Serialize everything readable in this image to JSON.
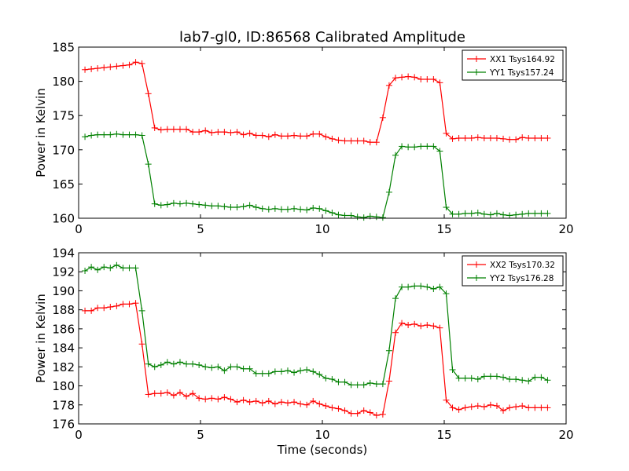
{
  "figure": {
    "title": "lab7-gl0, ID:86568 Calibrated Amplitude",
    "xlabel": "Time (seconds)"
  },
  "colors": {
    "red": "#ff0000",
    "green": "#008000"
  },
  "chart_data": [
    {
      "type": "line",
      "ylabel": "Power in Kelvin",
      "xlim": [
        0,
        20
      ],
      "ylim": [
        160,
        185
      ],
      "xticks": [
        0,
        5,
        10,
        15,
        20
      ],
      "yticks": [
        160,
        165,
        170,
        175,
        180,
        185
      ],
      "legend_position": "top-right",
      "x": [
        0.26,
        0.52,
        0.78,
        1.04,
        1.3,
        1.56,
        1.82,
        2.08,
        2.34,
        2.6,
        2.86,
        3.12,
        3.38,
        3.64,
        3.9,
        4.16,
        4.42,
        4.68,
        4.94,
        5.2,
        5.46,
        5.72,
        5.98,
        6.24,
        6.5,
        6.76,
        7.02,
        7.28,
        7.54,
        7.8,
        8.06,
        8.32,
        8.58,
        8.84,
        9.1,
        9.36,
        9.62,
        9.88,
        10.14,
        10.4,
        10.66,
        10.92,
        11.18,
        11.44,
        11.7,
        11.96,
        12.22,
        12.48,
        12.74,
        13.0,
        13.26,
        13.52,
        13.78,
        14.04,
        14.3,
        14.56,
        14.82,
        15.08,
        15.34,
        15.6,
        15.86,
        16.12,
        16.38,
        16.64,
        16.9,
        17.16,
        17.42,
        17.68,
        17.94,
        18.2,
        18.46,
        18.72,
        18.98,
        19.24
      ],
      "series": [
        {
          "name": "XX1 Tsys164.92",
          "color": "#ff0000",
          "values": [
            181.7,
            181.8,
            181.9,
            182.0,
            182.1,
            182.2,
            182.3,
            182.4,
            182.8,
            182.6,
            178.2,
            173.2,
            172.9,
            173.0,
            173.0,
            173.0,
            173.0,
            172.6,
            172.6,
            172.8,
            172.5,
            172.6,
            172.6,
            172.5,
            172.6,
            172.2,
            172.4,
            172.1,
            172.1,
            171.9,
            172.2,
            172.0,
            172.0,
            172.1,
            172.0,
            172.0,
            172.3,
            172.3,
            171.9,
            171.6,
            171.4,
            171.3,
            171.3,
            171.3,
            171.3,
            171.1,
            171.1,
            174.7,
            179.4,
            180.5,
            180.6,
            180.7,
            180.6,
            180.3,
            180.3,
            180.3,
            179.8,
            172.4,
            171.6,
            171.7,
            171.7,
            171.7,
            171.8,
            171.7,
            171.7,
            171.7,
            171.6,
            171.5,
            171.5,
            171.8,
            171.7,
            171.7,
            171.7,
            171.7
          ]
        },
        {
          "name": "YY1 Tsys157.24",
          "color": "#008000",
          "values": [
            171.9,
            172.1,
            172.2,
            172.2,
            172.2,
            172.3,
            172.2,
            172.2,
            172.2,
            172.1,
            167.9,
            162.1,
            161.9,
            162.0,
            162.2,
            162.1,
            162.2,
            162.1,
            162.0,
            161.9,
            161.8,
            161.8,
            161.7,
            161.6,
            161.6,
            161.7,
            161.9,
            161.6,
            161.4,
            161.3,
            161.4,
            161.3,
            161.3,
            161.4,
            161.3,
            161.2,
            161.5,
            161.4,
            161.1,
            160.8,
            160.5,
            160.4,
            160.4,
            160.2,
            160.1,
            160.3,
            160.2,
            160.1,
            163.8,
            169.2,
            170.5,
            170.4,
            170.4,
            170.5,
            170.5,
            170.5,
            169.8,
            161.6,
            160.6,
            160.6,
            160.7,
            160.7,
            160.8,
            160.6,
            160.5,
            160.7,
            160.5,
            160.4,
            160.5,
            160.6,
            160.7,
            160.7,
            160.7,
            160.7
          ]
        }
      ]
    },
    {
      "type": "line",
      "ylabel": "Power in Kelvin",
      "xlabel": "Time (seconds)",
      "xlim": [
        0,
        20
      ],
      "ylim": [
        176,
        194
      ],
      "xticks": [
        0,
        5,
        10,
        15,
        20
      ],
      "yticks": [
        176,
        178,
        180,
        182,
        184,
        186,
        188,
        190,
        192,
        194
      ],
      "legend_position": "top-right",
      "x": [
        0.26,
        0.52,
        0.78,
        1.04,
        1.3,
        1.56,
        1.82,
        2.08,
        2.34,
        2.6,
        2.86,
        3.12,
        3.38,
        3.64,
        3.9,
        4.16,
        4.42,
        4.68,
        4.94,
        5.2,
        5.46,
        5.72,
        5.98,
        6.24,
        6.5,
        6.76,
        7.02,
        7.28,
        7.54,
        7.8,
        8.06,
        8.32,
        8.58,
        8.84,
        9.1,
        9.36,
        9.62,
        9.88,
        10.14,
        10.4,
        10.66,
        10.92,
        11.18,
        11.44,
        11.7,
        11.96,
        12.22,
        12.48,
        12.74,
        13.0,
        13.26,
        13.52,
        13.78,
        14.04,
        14.3,
        14.56,
        14.82,
        15.08,
        15.34,
        15.6,
        15.86,
        16.12,
        16.38,
        16.64,
        16.9,
        17.16,
        17.42,
        17.68,
        17.94,
        18.2,
        18.46,
        18.72,
        18.98,
        19.24
      ],
      "series": [
        {
          "name": "XX2 Tsys170.32",
          "color": "#ff0000",
          "values": [
            187.9,
            187.9,
            188.2,
            188.2,
            188.3,
            188.4,
            188.6,
            188.6,
            188.7,
            184.4,
            179.1,
            179.2,
            179.2,
            179.3,
            179.0,
            179.3,
            178.9,
            179.2,
            178.7,
            178.6,
            178.7,
            178.6,
            178.8,
            178.6,
            178.3,
            178.5,
            178.3,
            178.4,
            178.2,
            178.4,
            178.1,
            178.3,
            178.2,
            178.3,
            178.1,
            178.0,
            178.4,
            178.1,
            177.9,
            177.7,
            177.6,
            177.4,
            177.1,
            177.1,
            177.4,
            177.2,
            176.9,
            177.0,
            180.5,
            185.6,
            186.6,
            186.4,
            186.5,
            186.3,
            186.4,
            186.3,
            186.1,
            178.5,
            177.7,
            177.5,
            177.7,
            177.8,
            177.9,
            177.8,
            178.0,
            177.9,
            177.4,
            177.7,
            177.8,
            177.9,
            177.7,
            177.7,
            177.7,
            177.7
          ]
        },
        {
          "name": "YY2 Tsys176.28",
          "color": "#008000",
          "values": [
            192.1,
            192.5,
            192.2,
            192.5,
            192.4,
            192.7,
            192.4,
            192.4,
            192.4,
            187.9,
            182.3,
            182.0,
            182.2,
            182.5,
            182.3,
            182.5,
            182.3,
            182.3,
            182.2,
            182.0,
            181.9,
            182.0,
            181.6,
            182.0,
            182.0,
            181.8,
            181.8,
            181.3,
            181.3,
            181.3,
            181.5,
            181.5,
            181.6,
            181.4,
            181.6,
            181.7,
            181.5,
            181.2,
            180.8,
            180.7,
            180.4,
            180.4,
            180.1,
            180.1,
            180.1,
            180.3,
            180.2,
            180.2,
            183.7,
            189.2,
            190.4,
            190.4,
            190.5,
            190.5,
            190.4,
            190.2,
            190.4,
            189.7,
            181.7,
            180.8,
            180.8,
            180.8,
            180.7,
            181.0,
            181.0,
            181.0,
            180.9,
            180.7,
            180.7,
            180.6,
            180.5,
            180.9,
            180.9,
            180.6
          ]
        }
      ]
    }
  ]
}
